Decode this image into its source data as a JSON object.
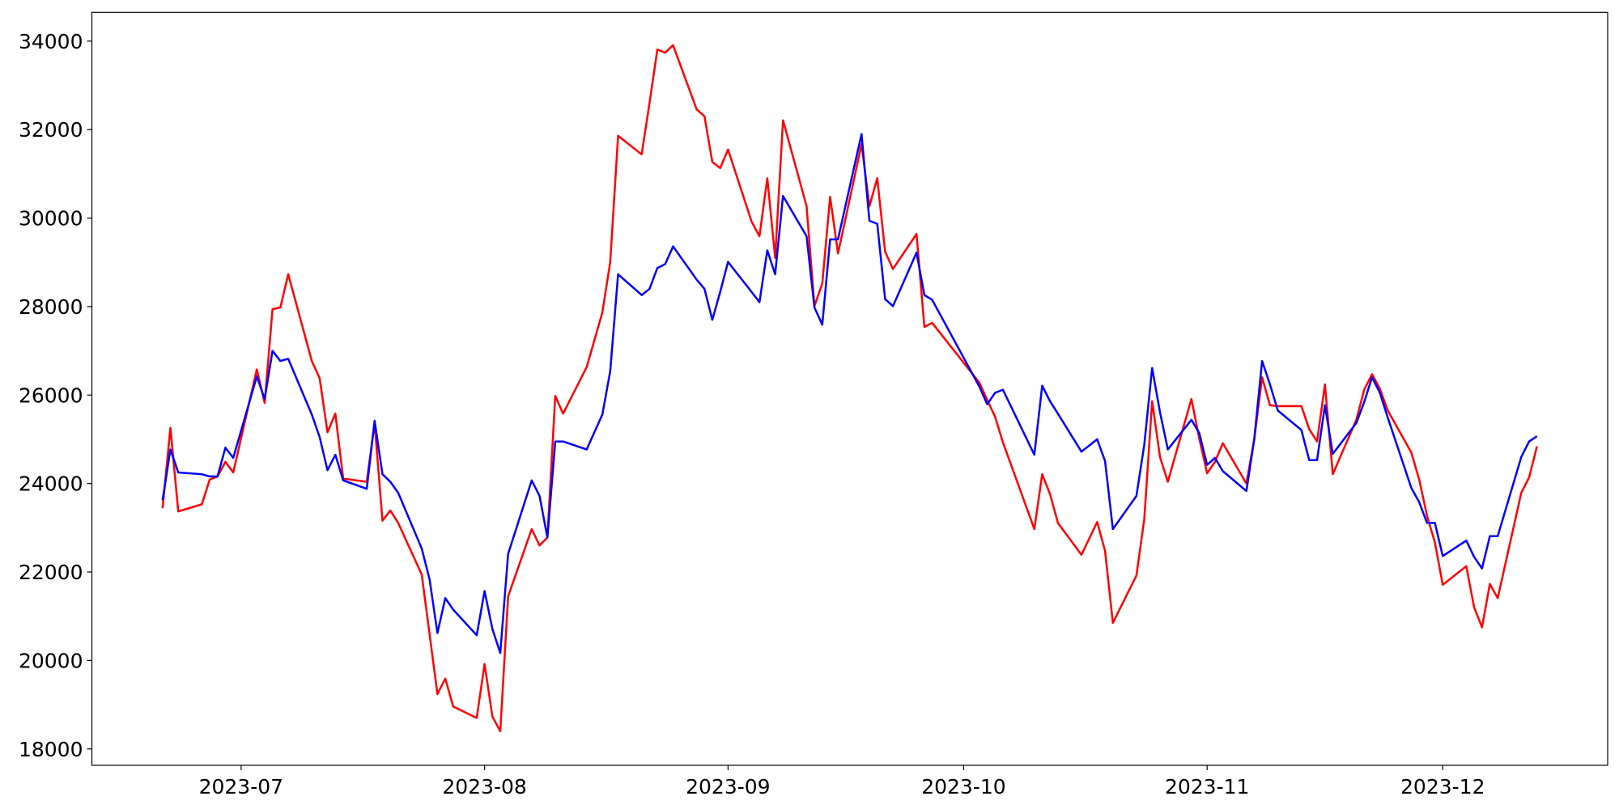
{
  "chart_data": {
    "type": "line",
    "x": [
      "2023-06-21",
      "2023-06-22",
      "2023-06-23",
      "2023-06-26",
      "2023-06-27",
      "2023-06-28",
      "2023-06-29",
      "2023-06-30",
      "2023-07-03",
      "2023-07-04",
      "2023-07-05",
      "2023-07-06",
      "2023-07-07",
      "2023-07-10",
      "2023-07-11",
      "2023-07-12",
      "2023-07-13",
      "2023-07-14",
      "2023-07-17",
      "2023-07-18",
      "2023-07-19",
      "2023-07-20",
      "2023-07-21",
      "2023-07-24",
      "2023-07-25",
      "2023-07-26",
      "2023-07-27",
      "2023-07-28",
      "2023-07-31",
      "2023-08-01",
      "2023-08-02",
      "2023-08-03",
      "2023-08-04",
      "2023-08-07",
      "2023-08-08",
      "2023-08-09",
      "2023-08-10",
      "2023-08-11",
      "2023-08-14",
      "2023-08-16",
      "2023-08-17",
      "2023-08-18",
      "2023-08-21",
      "2023-08-22",
      "2023-08-23",
      "2023-08-24",
      "2023-08-25",
      "2023-08-28",
      "2023-08-29",
      "2023-08-30",
      "2023-08-31",
      "2023-09-01",
      "2023-09-04",
      "2023-09-05",
      "2023-09-06",
      "2023-09-07",
      "2023-09-08",
      "2023-09-11",
      "2023-09-12",
      "2023-09-13",
      "2023-09-14",
      "2023-09-15",
      "2023-09-18",
      "2023-09-19",
      "2023-09-20",
      "2023-09-21",
      "2023-09-22",
      "2023-09-25",
      "2023-09-26",
      "2023-09-27",
      "2023-10-03",
      "2023-10-04",
      "2023-10-05",
      "2023-10-06",
      "2023-10-10",
      "2023-10-11",
      "2023-10-12",
      "2023-10-13",
      "2023-10-16",
      "2023-10-18",
      "2023-10-19",
      "2023-10-20",
      "2023-10-23",
      "2023-10-24",
      "2023-10-25",
      "2023-10-26",
      "2023-10-27",
      "2023-10-30",
      "2023-10-31",
      "2023-11-01",
      "2023-11-02",
      "2023-11-03",
      "2023-11-06",
      "2023-11-07",
      "2023-11-08",
      "2023-11-09",
      "2023-11-10",
      "2023-11-13",
      "2023-11-14",
      "2023-11-15",
      "2023-11-16",
      "2023-11-17",
      "2023-11-20",
      "2023-11-21",
      "2023-11-22",
      "2023-11-23",
      "2023-11-24",
      "2023-11-27",
      "2023-11-28",
      "2023-11-29",
      "2023-11-30",
      "2023-12-01",
      "2023-12-04",
      "2023-12-05",
      "2023-12-06",
      "2023-12-07",
      "2023-12-08",
      "2023-12-11",
      "2023-12-12",
      "2023-12-13"
    ],
    "series": [
      {
        "color": "#ff0000",
        "values": [
          23440,
          25260,
          23370,
          23530,
          24090,
          24160,
          24490,
          24250,
          26580,
          25820,
          27940,
          27980,
          28730,
          26770,
          26380,
          25160,
          25580,
          24110,
          24040,
          25370,
          23160,
          23390,
          23110,
          21940,
          20590,
          19240,
          19590,
          18960,
          18700,
          19920,
          18730,
          18400,
          21450,
          22970,
          22600,
          22780,
          25980,
          25580,
          26630,
          27870,
          29010,
          31860,
          31440,
          32600,
          33810,
          33740,
          33910,
          32460,
          32300,
          31270,
          31130,
          31550,
          29920,
          29590,
          30900,
          29100,
          32210,
          30270,
          28010,
          28520,
          30480,
          29200,
          31670,
          30270,
          30900,
          29240,
          28850,
          29640,
          27540,
          27630,
          26280,
          25890,
          25510,
          24930,
          22970,
          24210,
          23760,
          23110,
          22390,
          23130,
          22480,
          20850,
          21920,
          23200,
          25860,
          24600,
          24040,
          25910,
          25020,
          24230,
          24490,
          24910,
          24000,
          25000,
          26400,
          25770,
          25750,
          25750,
          25230,
          24950,
          26240,
          24210,
          25440,
          26120,
          26470,
          26140,
          25650,
          24700,
          24090,
          23270,
          22670,
          21710,
          22130,
          21200,
          20750,
          21730,
          21410,
          23790,
          24140,
          24840
        ]
      },
      {
        "color": "#0000ff",
        "values": [
          23620,
          24770,
          24250,
          24210,
          24160,
          24160,
          24810,
          24580,
          26420,
          25910,
          27000,
          26770,
          26820,
          25560,
          25050,
          24300,
          24650,
          24070,
          23880,
          25420,
          24210,
          24040,
          23790,
          22530,
          21830,
          20620,
          21410,
          21150,
          20570,
          21570,
          20710,
          20170,
          22410,
          24070,
          23720,
          22780,
          24950,
          24950,
          24770,
          25560,
          26540,
          28730,
          28260,
          28400,
          28870,
          28960,
          29360,
          28610,
          28400,
          27700,
          28330,
          29010,
          28330,
          28100,
          29270,
          28730,
          30500,
          29590,
          27980,
          27590,
          29520,
          29520,
          31900,
          29940,
          29870,
          28170,
          28010,
          29220,
          28260,
          28150,
          26190,
          25790,
          26050,
          26120,
          24650,
          26210,
          25860,
          25580,
          24720,
          25000,
          24510,
          22970,
          23720,
          24880,
          26610,
          25610,
          24770,
          25440,
          25140,
          24420,
          24580,
          24280,
          23830,
          25000,
          26770,
          26240,
          25650,
          25210,
          24530,
          24530,
          25770,
          24670,
          25370,
          25840,
          26400,
          26050,
          25490,
          23900,
          23580,
          23110,
          23110,
          22360,
          22710,
          22340,
          22080,
          22810,
          22810,
          24600,
          24950,
          25070
        ]
      }
    ],
    "xlim": [
      "2023-06-12",
      "2023-12-22"
    ],
    "xticks": [
      {
        "value": "2023-07-01",
        "label": "2023-07"
      },
      {
        "value": "2023-08-01",
        "label": "2023-08"
      },
      {
        "value": "2023-09-01",
        "label": "2023-09"
      },
      {
        "value": "2023-10-01",
        "label": "2023-10"
      },
      {
        "value": "2023-11-01",
        "label": "2023-11"
      },
      {
        "value": "2023-12-01",
        "label": "2023-12"
      }
    ],
    "ylim": [
      17630,
      34650
    ],
    "yticks": [
      18000,
      20000,
      22000,
      24000,
      26000,
      28000,
      30000,
      32000,
      34000
    ],
    "grid": false
  }
}
